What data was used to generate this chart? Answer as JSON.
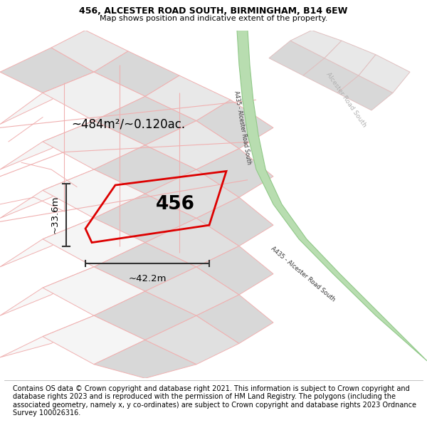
{
  "title": "456, ALCESTER ROAD SOUTH, BIRMINGHAM, B14 6EW",
  "subtitle": "Map shows position and indicative extent of the property.",
  "footer": "Contains OS data © Crown copyright and database right 2021. This information is subject to Crown copyright and database rights 2023 and is reproduced with the permission of HM Land Registry. The polygons (including the associated geometry, namely x, y co-ordinates) are subject to Crown copyright and database rights 2023 Ordnance Survey 100026316.",
  "title_fontsize": 9.0,
  "subtitle_fontsize": 8.0,
  "footer_fontsize": 7.0,
  "area_text": "~484m²/~0.120ac.",
  "property_number": "456",
  "dim_width": "~42.2m",
  "dim_height": "~33.6m",
  "map_bg": "#ffffff",
  "parcel_fill": "#e8e8e8",
  "parcel_fill2": "#d8d8d8",
  "parcel_edge_pink": "#f0b0b0",
  "parcel_edge_light": "#e0c0c0",
  "road_green_fill": "#b8ddb0",
  "road_green_edge": "#90c888",
  "road_label_color": "#333333",
  "road2_label_color": "#b0b0b0",
  "red_color": "#dd0000",
  "dim_line_color": "#333333"
}
